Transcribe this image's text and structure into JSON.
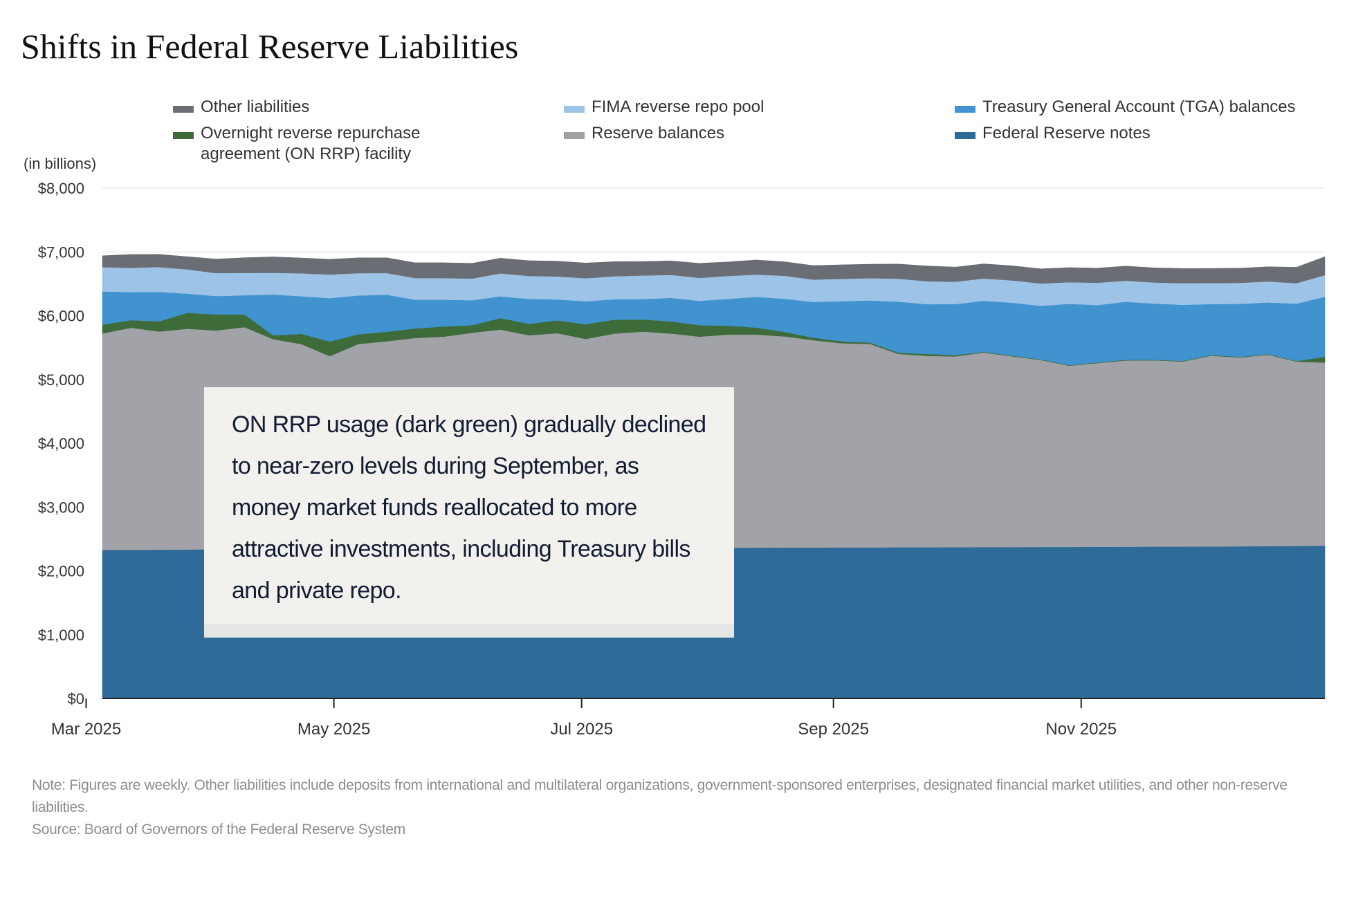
{
  "title": "Shifts in Federal Reserve Liabilities",
  "unit_label": "(in billions)",
  "legend": [
    {
      "label": "Other liabilities",
      "color": "#6a6d74"
    },
    {
      "label": "FIMA reverse repo pool",
      "color": "#9dc3e6"
    },
    {
      "label": "Treasury General Account (TGA) balances",
      "color": "#4193d0"
    },
    {
      "label": "Overnight reverse repurchase\nagreement (ON RRP) facility",
      "color": "#3e6b3a"
    },
    {
      "label": "Reserve balances",
      "color": "#a2a3a8"
    },
    {
      "label": "Federal Reserve notes",
      "color": "#2e6b99"
    }
  ],
  "callout": "ON RRP usage (dark green) gradually declined to near-zero levels during September, as money market funds reallocated to more attractive investments, including Treasury bills and private repo.",
  "note": "Note: Figures are weekly. Other liabilities include deposits from international and multilateral organizations, government-sponsored enterprises, designated financial market utilities, and other non-reserve liabilities.",
  "source": "Source: Board of Governors of the Federal Reserve System",
  "chart_data": {
    "type": "area",
    "stacked": true,
    "ylabel": "(in billions)",
    "ylim": [
      0,
      8000
    ],
    "y_ticks": [
      0,
      1000,
      2000,
      3000,
      4000,
      5000,
      6000,
      7000,
      8000
    ],
    "y_tick_labels": [
      "$0",
      "$1,000",
      "$2,000",
      "$3,000",
      "$4,000",
      "$5,000",
      "$6,000",
      "$7,000",
      "$8,000"
    ],
    "x_tick_labels": [
      "Mar 2025",
      "May 2025",
      "Jul 2025",
      "Sep 2025",
      "Nov 2025"
    ],
    "x_range": [
      "2025-03-05",
      "2025-12-31"
    ],
    "x_ticks": [
      "2025-03-01",
      "2025-05-01",
      "2025-07-01",
      "2025-09-01",
      "2025-11-01"
    ],
    "grid": true,
    "legend_position": "top",
    "x": [
      "2025-03-05",
      "2025-03-12",
      "2025-03-19",
      "2025-03-26",
      "2025-04-02",
      "2025-04-09",
      "2025-04-16",
      "2025-04-23",
      "2025-04-30",
      "2025-05-07",
      "2025-05-14",
      "2025-05-21",
      "2025-05-28",
      "2025-06-04",
      "2025-06-11",
      "2025-06-18",
      "2025-06-25",
      "2025-07-02",
      "2025-07-09",
      "2025-07-16",
      "2025-07-23",
      "2025-07-30",
      "2025-08-06",
      "2025-08-13",
      "2025-08-20",
      "2025-08-27",
      "2025-09-03",
      "2025-09-10",
      "2025-09-17",
      "2025-09-24",
      "2025-10-01",
      "2025-10-08",
      "2025-10-15",
      "2025-10-22",
      "2025-10-29",
      "2025-11-05",
      "2025-11-12",
      "2025-11-19",
      "2025-11-26",
      "2025-12-03",
      "2025-12-10",
      "2025-12-17",
      "2025-12-24",
      "2025-12-31"
    ],
    "series": [
      {
        "name": "Federal Reserve notes",
        "color": "#2e6b99",
        "values": [
          2330,
          2330,
          2332,
          2335,
          2338,
          2340,
          2342,
          2345,
          2345,
          2347,
          2348,
          2350,
          2350,
          2352,
          2352,
          2353,
          2355,
          2356,
          2358,
          2360,
          2360,
          2362,
          2363,
          2364,
          2365,
          2366,
          2368,
          2368,
          2370,
          2370,
          2372,
          2373,
          2373,
          2375,
          2375,
          2376,
          2378,
          2380,
          2380,
          2382,
          2385,
          2387,
          2390,
          2395
        ]
      },
      {
        "name": "Reserve balances",
        "color": "#a2a3a8",
        "values": [
          3390,
          3480,
          3420,
          3460,
          3430,
          3480,
          3290,
          3210,
          3020,
          3210,
          3250,
          3300,
          3320,
          3380,
          3430,
          3340,
          3370,
          3280,
          3360,
          3390,
          3360,
          3310,
          3340,
          3340,
          3310,
          3250,
          3200,
          3190,
          3030,
          3000,
          2990,
          3050,
          2990,
          2930,
          2840,
          2880,
          2920,
          2920,
          2900,
          2990,
          2960,
          3000,
          2890,
          2870
        ]
      },
      {
        "name": "Overnight reverse repurchase agreement (ON RRP) facility",
        "color": "#3e6b3a",
        "values": [
          140,
          120,
          160,
          250,
          250,
          200,
          60,
          160,
          230,
          150,
          150,
          150,
          160,
          120,
          180,
          180,
          200,
          230,
          220,
          190,
          190,
          180,
          140,
          110,
          70,
          40,
          30,
          20,
          20,
          30,
          20,
          10,
          10,
          10,
          10,
          10,
          10,
          10,
          10,
          10,
          10,
          10,
          10,
          90
        ]
      },
      {
        "name": "Treasury General Account (TGA) balances",
        "color": "#4193d0",
        "values": [
          520,
          440,
          460,
          300,
          290,
          300,
          640,
          590,
          680,
          610,
          580,
          450,
          420,
          390,
          340,
          390,
          330,
          360,
          320,
          320,
          370,
          380,
          420,
          480,
          520,
          560,
          630,
          660,
          800,
          780,
          800,
          800,
          830,
          840,
          960,
          900,
          910,
          880,
          880,
          800,
          830,
          810,
          900,
          940
        ]
      },
      {
        "name": "FIMA reverse repo pool",
        "color": "#9dc3e6",
        "values": [
          380,
          380,
          390,
          380,
          360,
          350,
          340,
          360,
          370,
          350,
          340,
          340,
          340,
          340,
          360,
          360,
          360,
          360,
          360,
          370,
          360,
          360,
          360,
          350,
          360,
          350,
          350,
          350,
          360,
          360,
          350,
          350,
          350,
          350,
          340,
          350,
          330,
          330,
          340,
          330,
          330,
          330,
          320,
          340
        ]
      },
      {
        "name": "Other liabilities",
        "color": "#6a6d74",
        "values": [
          180,
          210,
          200,
          200,
          220,
          240,
          250,
          240,
          240,
          240,
          240,
          240,
          240,
          240,
          240,
          240,
          240,
          240,
          230,
          220,
          220,
          230,
          220,
          230,
          220,
          220,
          220,
          220,
          230,
          240,
          230,
          230,
          230,
          230,
          230,
          230,
          230,
          230,
          230,
          230,
          230,
          230,
          250,
          290
        ]
      }
    ]
  }
}
